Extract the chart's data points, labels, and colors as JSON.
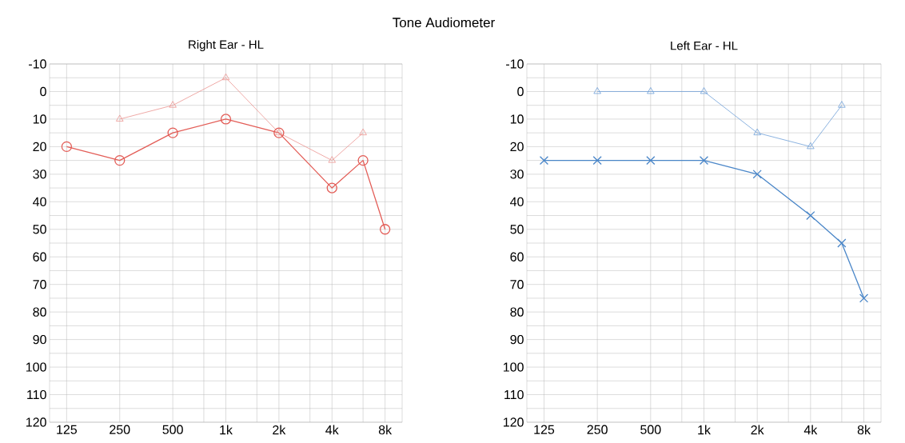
{
  "chart_data": [
    {
      "type": "line",
      "title": "Tone Audiometer",
      "subtitle": "Right Ear - HL",
      "x": [
        125,
        250,
        500,
        1000,
        2000,
        4000,
        6000,
        8000
      ],
      "series": [
        {
          "color": "#e35d57",
          "marker": "circle",
          "values": [
            20,
            25,
            15,
            10,
            15,
            35,
            25,
            50
          ]
        },
        {
          "color": "#eb9490",
          "marker": "triangle",
          "x": [
            250,
            500,
            1000,
            2000,
            4000,
            6000
          ],
          "values": [
            10,
            5,
            -5,
            15,
            25,
            15
          ]
        }
      ],
      "log": "x",
      "xlim": [
        100,
        10000
      ],
      "ylim": [
        120,
        -10
      ],
      "grid": true,
      "xticks": [
        {
          "value": 125,
          "label": "125"
        },
        {
          "value": 250,
          "label": "250"
        },
        {
          "value": 500,
          "label": "500"
        },
        {
          "value": 750,
          "label": null
        },
        {
          "value": 1000,
          "label": "1k"
        },
        {
          "value": 1500,
          "label": null
        },
        {
          "value": 2000,
          "label": "2k"
        },
        {
          "value": 3000,
          "label": null
        },
        {
          "value": 4000,
          "label": "4k"
        },
        {
          "value": 6000,
          "label": null
        },
        {
          "value": 8000,
          "label": "8k"
        }
      ],
      "yticks": [
        -10,
        {
          "value": -5,
          "label": null
        },
        0,
        {
          "value": 5,
          "label": null
        },
        10,
        {
          "value": 15,
          "label": null
        },
        20,
        {
          "value": 25,
          "label": null
        },
        30,
        {
          "value": 35,
          "label": null
        },
        40,
        {
          "value": 45,
          "label": null
        },
        50,
        {
          "value": 55,
          "label": null
        },
        60,
        {
          "value": 65,
          "label": null
        },
        70,
        {
          "value": 75,
          "label": null
        },
        80,
        {
          "value": 85,
          "label": null
        },
        90,
        {
          "value": 95,
          "label": null
        },
        100,
        {
          "value": 105,
          "label": null
        },
        110,
        {
          "value": 115,
          "label": null
        },
        120
      ]
    },
    {
      "type": "line",
      "subtitle": "Left Ear - HL",
      "x": [
        125,
        250,
        500,
        1000,
        2000,
        4000,
        6000,
        8000
      ],
      "series": [
        {
          "color": "#4a86c8",
          "marker": "cross",
          "values": [
            25,
            25,
            25,
            25,
            30,
            45,
            55,
            75
          ]
        },
        {
          "color": "#6fa0d8",
          "marker": "triangle",
          "x": [
            250,
            500,
            1000,
            2000,
            4000,
            6000
          ],
          "values": [
            0,
            0,
            0,
            15,
            20,
            5
          ]
        }
      ],
      "log": "x",
      "xlim": [
        100,
        10000
      ],
      "ylim": [
        120,
        -10
      ],
      "grid": true,
      "xticks": [
        {
          "value": 125,
          "label": "125"
        },
        {
          "value": 250,
          "label": "250"
        },
        {
          "value": 500,
          "label": "500"
        },
        {
          "value": 750,
          "label": null
        },
        {
          "value": 1000,
          "label": "1k"
        },
        {
          "value": 1500,
          "label": null
        },
        {
          "value": 2000,
          "label": "2k"
        },
        {
          "value": 3000,
          "label": null
        },
        {
          "value": 4000,
          "label": "4k"
        },
        {
          "value": 6000,
          "label": null
        },
        {
          "value": 8000,
          "label": "8k"
        }
      ],
      "yticks": [
        -10,
        {
          "value": -5,
          "label": null
        },
        0,
        {
          "value": 5,
          "label": null
        },
        10,
        {
          "value": 15,
          "label": null
        },
        20,
        {
          "value": 25,
          "label": null
        },
        30,
        {
          "value": 35,
          "label": null
        },
        40,
        {
          "value": 45,
          "label": null
        },
        50,
        {
          "value": 55,
          "label": null
        },
        60,
        {
          "value": 65,
          "label": null
        },
        70,
        {
          "value": 75,
          "label": null
        },
        80,
        {
          "value": 85,
          "label": null
        },
        90,
        {
          "value": 95,
          "label": null
        },
        100,
        {
          "value": 105,
          "label": null
        },
        110,
        {
          "value": 115,
          "label": null
        },
        120
      ]
    }
  ]
}
